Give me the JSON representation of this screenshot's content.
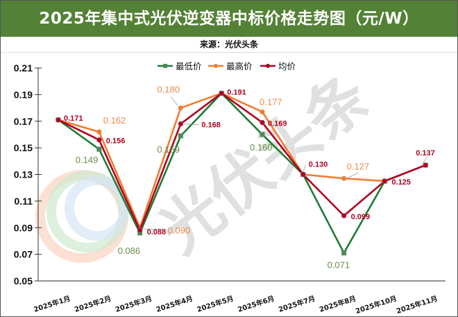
{
  "header": {
    "title": "2025年集中式光伏逆变器中标价格走势图（元/W）",
    "source": "来源：光伏头条"
  },
  "watermark": {
    "text": "光伏头条"
  },
  "colors": {
    "title_bg": "#538135",
    "min": "#1e7b34",
    "min_marker": "#4d8a5b",
    "max": "#ed7d31",
    "avg": "#b00020"
  },
  "chart_data": {
    "type": "line",
    "title": "2025年集中式光伏逆变器中标价格走势图（元/W）",
    "subtitle": "来源：光伏头条",
    "xlabel": "",
    "ylabel": "",
    "ylim": [
      0.05,
      0.21
    ],
    "yticks": [
      "0.21",
      "0.19",
      "0.17",
      "0.15",
      "0.13",
      "0.11",
      "0.09",
      "0.07",
      "0.05"
    ],
    "grid": false,
    "legend_position": "top",
    "categories": [
      "2025年1月",
      "2025年2月",
      "2025年3月",
      "2025年4月",
      "2025年5月",
      "2025年6月",
      "2025年7月",
      "2025年8月",
      "2025年10月",
      "2025年11月"
    ],
    "series": [
      {
        "name": "最低价",
        "values": [
          0.171,
          0.149,
          0.086,
          0.159,
          0.191,
          0.16,
          0.13,
          0.071,
          0.125,
          0.137
        ],
        "labels": [
          null,
          "0.149",
          "0.086",
          "0.159",
          null,
          "0.160",
          null,
          "0.071",
          null,
          null
        ]
      },
      {
        "name": "最高价",
        "values": [
          0.171,
          0.162,
          0.09,
          0.18,
          0.191,
          0.177,
          0.13,
          0.127,
          0.125,
          0.137
        ],
        "labels": [
          null,
          "0.162",
          "0.090",
          "0.180",
          null,
          "0.177",
          null,
          "0.127",
          null,
          null
        ]
      },
      {
        "name": "均价",
        "values": [
          0.171,
          0.156,
          0.088,
          0.168,
          0.191,
          0.169,
          0.13,
          0.099,
          0.125,
          0.137
        ],
        "labels": [
          "0.171",
          "0.156",
          "0.088",
          "0.168",
          "0.191",
          "0.169",
          "0.130",
          "0.099",
          "0.125",
          "0.137"
        ]
      }
    ]
  }
}
